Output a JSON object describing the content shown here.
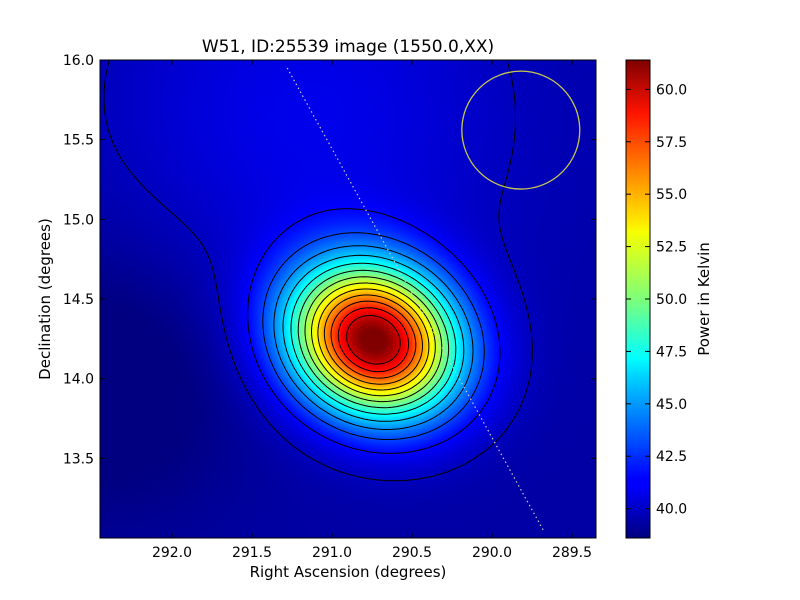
{
  "chart_data": {
    "type": "heatmap",
    "title": "W51, ID:25539 image (1550.0,XX)",
    "xlabel": "Right Ascension (degrees)",
    "ylabel": "Declination (degrees)",
    "colorbar_label": "Power in Kelvin",
    "xlim": [
      292.45,
      289.35
    ],
    "ylim": [
      13.0,
      16.0
    ],
    "x_inverted": true,
    "xticks": [
      292.0,
      291.5,
      291.0,
      290.5,
      290.0,
      289.5
    ],
    "xtick_labels": [
      "292.0",
      "291.5",
      "291.0",
      "290.5",
      "290.0",
      "289.5"
    ],
    "yticks": [
      13.5,
      14.0,
      14.5,
      15.0,
      15.5,
      16.0
    ],
    "ytick_labels": [
      "13.5",
      "14.0",
      "14.5",
      "15.0",
      "15.5",
      "16.0"
    ],
    "colorbar_range": [
      38.6,
      61.4
    ],
    "colorbar_ticks": [
      40.0,
      42.5,
      45.0,
      47.5,
      50.0,
      52.5,
      55.0,
      57.5,
      60.0
    ],
    "colorbar_tick_labels": [
      "40.0",
      "42.5",
      "45.0",
      "47.5",
      "50.0",
      "52.5",
      "55.0",
      "57.5",
      "60.0"
    ],
    "colormap": "jet",
    "peak": {
      "ra": 290.74,
      "dec": 14.24,
      "value": 61.4
    },
    "min_value": 38.6,
    "contour_levels": [
      40.0,
      41.5,
      43.0,
      44.5,
      46.0,
      47.5,
      49.0,
      50.5,
      52.0,
      53.5,
      55.0,
      56.5,
      58.0,
      59.5
    ],
    "beam_circle": {
      "ra": 289.82,
      "dec": 15.56,
      "radius_deg": 0.37,
      "color": "#c8c850"
    },
    "dotted_line": {
      "start": {
        "ra": 291.28,
        "dec": 15.95
      },
      "end": {
        "ra": 289.68,
        "dec": 13.05
      },
      "color": "#c8c8c8"
    },
    "grid": false
  }
}
